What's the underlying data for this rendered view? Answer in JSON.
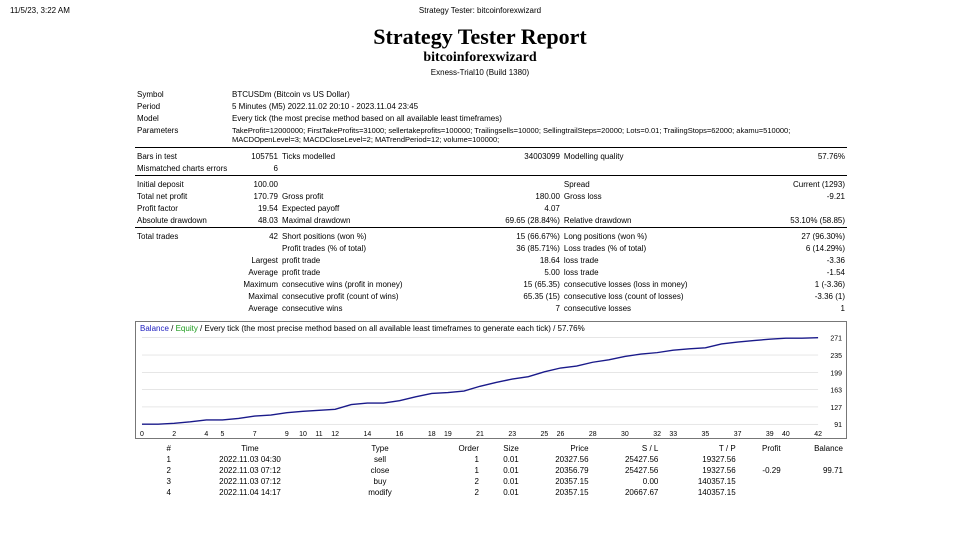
{
  "header": {
    "timestamp": "11/5/23, 3:22 AM",
    "top_title": "Strategy Tester: bitcoinforexwizard",
    "main_title": "Strategy Tester Report",
    "sub_title": "bitcoinforexwizard",
    "build": "Exness-Trial10 (Build 1380)"
  },
  "meta": {
    "symbol_l": "Symbol",
    "symbol_v": "BTCUSDm (Bitcoin vs US Dollar)",
    "period_l": "Period",
    "period_v": "5 Minutes (M5) 2022.11.02 20:10 - 2023.11.04 23:45",
    "model_l": "Model",
    "model_v": "Every tick (the most precise method based on all available least timeframes)",
    "params_l": "Parameters",
    "params_v": "TakeProfit=12000000; FirstTakeProfits=31000; sellertakeprofits=100000; Trailingsells=10000; SellingtrailSteps=20000; Lots=0.01; TrailingStops=62000; akamu=510000; MACDOpenLevel=3; MACDCloseLevel=2; MATrendPeriod=12; volume=100000;",
    "bars_l": "Bars in test",
    "bars_v": "105751",
    "ticks_l": "Ticks modelled",
    "ticks_v": "34003099",
    "mq_l": "Modelling quality",
    "mq_v": "57.76%",
    "mce_l": "Mismatched charts errors",
    "mce_v": "6",
    "idep_l": "Initial deposit",
    "idep_v": "100.00",
    "spread_l": "Spread",
    "spread_v": "Current (1293)",
    "tnp_l": "Total net profit",
    "tnp_v": "170.79",
    "gp_l": "Gross profit",
    "gp_v": "180.00",
    "gl_l": "Gross loss",
    "gl_v": "-9.21",
    "pf_l": "Profit factor",
    "pf_v": "19.54",
    "ep_l": "Expected payoff",
    "ep_v": "4.07",
    "ad_l": "Absolute drawdown",
    "ad_v": "48.03",
    "md_l": "Maximal drawdown",
    "md_v": "69.65 (28.84%)",
    "rd_l": "Relative drawdown",
    "rd_v": "53.10% (58.85)",
    "tt_l": "Total trades",
    "tt_v": "42",
    "sp_l": "Short positions (won %)",
    "sp_v": "15 (66.67%)",
    "lp_l": "Long positions (won %)",
    "lp_v": "27 (96.30%)",
    "pt_l": "Profit trades (% of total)",
    "pt_v": "36 (85.71%)",
    "lt_l": "Loss trades (% of total)",
    "lt_v": "6 (14.29%)",
    "lg_l": "Largest",
    "lg_p_l": "profit trade",
    "lg_p_v": "18.64",
    "lg_l_l": "loss trade",
    "lg_l_v": "-3.36",
    "av_l": "Average",
    "av_p_l": "profit trade",
    "av_p_v": "5.00",
    "av_l_l": "loss trade",
    "av_l_v": "-1.54",
    "mx_l": "Maximum",
    "mx_cw_l": "consecutive wins (profit in money)",
    "mx_cw_v": "15 (65.35)",
    "mx_cl_l": "consecutive losses (loss in money)",
    "mx_cl_v": "1 (-3.36)",
    "mxl_l": "Maximal",
    "mxl_cp_l": "consecutive profit (count of wins)",
    "mxl_cp_v": "65.35 (15)",
    "mxl_cl_l": "consecutive loss (count of losses)",
    "mxl_cl_v": "-3.36 (1)",
    "av2_l": "Average",
    "av2_cw_l": "consecutive wins",
    "av2_cw_v": "7",
    "av2_cl_l": "consecutive losses",
    "av2_cl_v": "1"
  },
  "chart": {
    "hdr_pre": "Balance",
    "hdr_sep": " / ",
    "hdr_eq": "Equity",
    "hdr_post": " / Every tick (the most precise method based on all available least timeframes to generate each tick) / 57.76%",
    "line_color": "#1a1a8a",
    "bg_color": "#ffffff",
    "grid_color": "#cdcdcd",
    "x_min": 0,
    "x_max": 42,
    "y_min": 91,
    "y_max": 271,
    "x_ticks": [
      "0",
      "2",
      "4",
      "5",
      "7",
      "9",
      "10",
      "11",
      "12",
      "14",
      "16",
      "18",
      "19",
      "21",
      "23",
      "25",
      "26",
      "28",
      "30",
      "32",
      "33",
      "35",
      "37",
      "39",
      "40",
      "42"
    ],
    "y_ticks": [
      "91",
      "127",
      "163",
      "199",
      "235",
      "271"
    ],
    "series": [
      91,
      91,
      93,
      96,
      100,
      100,
      103,
      108,
      110,
      115,
      118,
      120,
      122,
      132,
      135,
      135,
      140,
      148,
      155,
      157,
      160,
      170,
      178,
      185,
      190,
      200,
      208,
      212,
      220,
      225,
      232,
      237,
      240,
      245,
      248,
      250,
      258,
      262,
      265,
      268,
      270,
      270,
      271
    ]
  },
  "trades": {
    "cols": {
      "n": "#",
      "time": "Time",
      "type": "Type",
      "order": "Order",
      "size": "Size",
      "price": "Price",
      "sl": "S / L",
      "tp": "T / P",
      "profit": "Profit",
      "balance": "Balance"
    },
    "rows": [
      {
        "n": "1",
        "time": "2022.11.03 04:30",
        "type": "sell",
        "order": "1",
        "size": "0.01",
        "price": "20327.56",
        "sl": "25427.56",
        "tp": "19327.56",
        "profit": "",
        "balance": ""
      },
      {
        "n": "2",
        "time": "2022.11.03 07:12",
        "type": "close",
        "order": "1",
        "size": "0.01",
        "price": "20356.79",
        "sl": "25427.56",
        "tp": "19327.56",
        "profit": "-0.29",
        "balance": "99.71"
      },
      {
        "n": "3",
        "time": "2022.11.03 07:12",
        "type": "buy",
        "order": "2",
        "size": "0.01",
        "price": "20357.15",
        "sl": "0.00",
        "tp": "140357.15",
        "profit": "",
        "balance": ""
      },
      {
        "n": "4",
        "time": "2022.11.04 14:17",
        "type": "modify",
        "order": "2",
        "size": "0.01",
        "price": "20357.15",
        "sl": "20667.67",
        "tp": "140357.15",
        "profit": "",
        "balance": ""
      }
    ]
  }
}
